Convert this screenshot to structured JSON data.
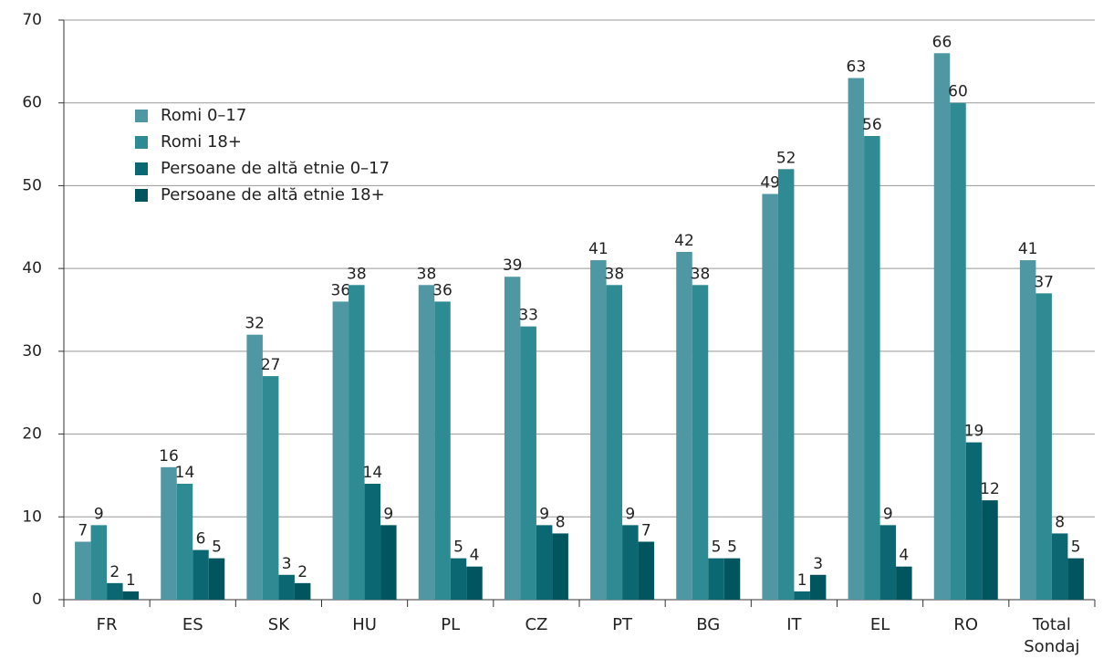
{
  "chart_data": {
    "type": "bar",
    "categories": [
      "FR",
      "ES",
      "SK",
      "HU",
      "PL",
      "CZ",
      "PT",
      "BG",
      "IT",
      "EL",
      "RO",
      "Total Sondaj"
    ],
    "series": [
      {
        "name": "Romi 0–17",
        "color": "#4f97a2",
        "values": [
          7,
          16,
          32,
          36,
          38,
          39,
          41,
          42,
          49,
          63,
          66,
          41
        ]
      },
      {
        "name": "Romi 18+",
        "color": "#2e8b94",
        "values": [
          9,
          14,
          27,
          38,
          36,
          33,
          38,
          38,
          52,
          56,
          60,
          37
        ]
      },
      {
        "name": "Persoane de altă etnie 0–17",
        "color": "#0b6873",
        "values": [
          2,
          6,
          3,
          14,
          5,
          9,
          9,
          5,
          1,
          9,
          19,
          8
        ]
      },
      {
        "name": "Persoane de altă etnie 18+",
        "color": "#00555f",
        "values": [
          1,
          5,
          2,
          9,
          4,
          8,
          7,
          5,
          3,
          4,
          12,
          5
        ]
      }
    ],
    "ylim": [
      0,
      70
    ],
    "yticks": [
      0,
      10,
      20,
      30,
      40,
      50,
      60,
      70
    ],
    "grid": true
  }
}
